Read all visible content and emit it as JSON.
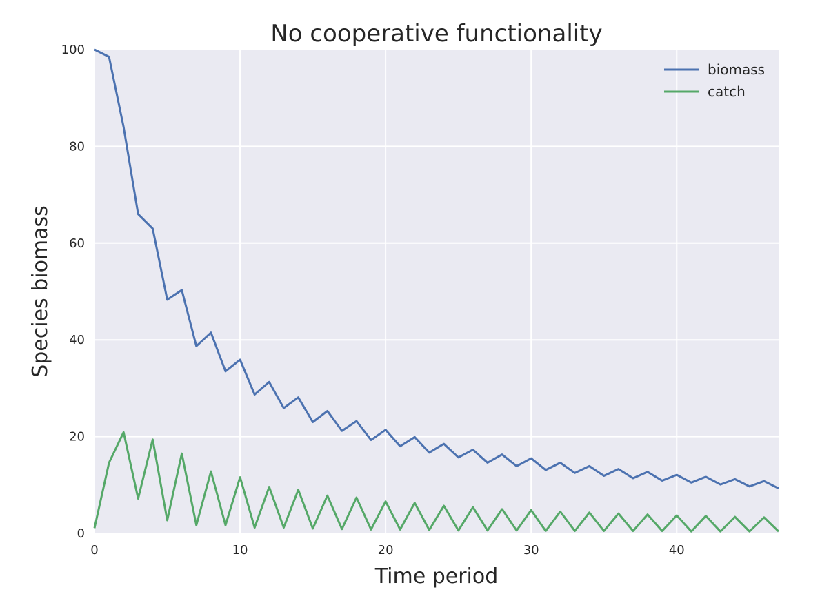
{
  "chart_data": {
    "type": "line",
    "title": "No cooperative functionality",
    "xlabel": "Time period",
    "ylabel": "Species biomass",
    "xlim": [
      0,
      47
    ],
    "ylim": [
      0,
      100
    ],
    "xticks": [
      "0",
      "10",
      "20",
      "30",
      "40"
    ],
    "yticks": [
      "0",
      "20",
      "40",
      "60",
      "80",
      "100"
    ],
    "grid": true,
    "legend_position": "top-right",
    "x": [
      0,
      1,
      2,
      3,
      4,
      5,
      6,
      7,
      8,
      9,
      10,
      11,
      12,
      13,
      14,
      15,
      16,
      17,
      18,
      19,
      20,
      21,
      22,
      23,
      24,
      25,
      26,
      27,
      28,
      29,
      30,
      31,
      32,
      33,
      34,
      35,
      36,
      37,
      38,
      39,
      40,
      41,
      42,
      43,
      44,
      45,
      46,
      47
    ],
    "series": [
      {
        "name": "biomass",
        "color": "#4c72b0",
        "values": [
          100,
          98.5,
          84,
          66,
          63,
          48.3,
          50.3,
          38.7,
          41.5,
          33.5,
          35.9,
          28.7,
          31.3,
          25.9,
          28.1,
          23,
          25.3,
          21.2,
          23.2,
          19.3,
          21.4,
          18,
          19.9,
          16.7,
          18.5,
          15.7,
          17.3,
          14.6,
          16.3,
          13.9,
          15.5,
          13.1,
          14.6,
          12.5,
          13.9,
          11.9,
          13.3,
          11.4,
          12.7,
          10.9,
          12.1,
          10.5,
          11.7,
          10.1,
          11.2,
          9.7,
          10.8,
          9.3
        ]
      },
      {
        "name": "catch",
        "color": "#55a868",
        "values": [
          1.1,
          14.6,
          20.9,
          7.2,
          19.4,
          2.7,
          16.5,
          1.7,
          12.8,
          1.7,
          11.6,
          1.2,
          9.6,
          1.2,
          9,
          1,
          7.8,
          0.9,
          7.4,
          0.8,
          6.6,
          0.8,
          6.3,
          0.7,
          5.7,
          0.6,
          5.4,
          0.6,
          5,
          0.6,
          4.8,
          0.5,
          4.5,
          0.5,
          4.3,
          0.5,
          4.1,
          0.5,
          3.9,
          0.5,
          3.7,
          0.4,
          3.6,
          0.4,
          3.4,
          0.4,
          3.3,
          0.4
        ]
      }
    ]
  }
}
